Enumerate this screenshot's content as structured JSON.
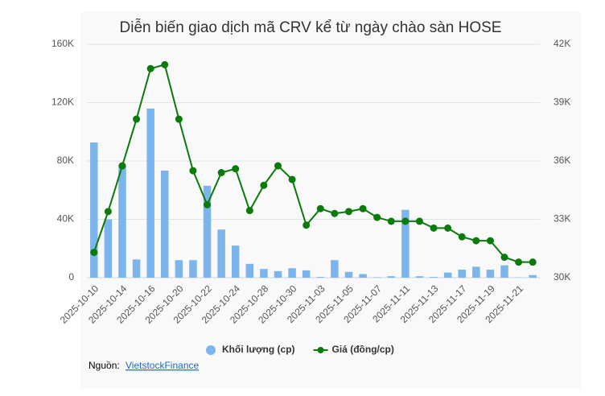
{
  "chart_data": {
    "type": "bar-line",
    "title": "Diễn biến giao dịch mã CRV kể từ ngày chào sàn HOSE",
    "categories": [
      "2025-10-10",
      null,
      "2025-10-14",
      null,
      "2025-10-16",
      null,
      "2025-10-20",
      null,
      "2025-10-22",
      null,
      "2025-10-24",
      null,
      "2025-10-28",
      null,
      "2025-10-30",
      null,
      "2025-11-03",
      null,
      "2025-11-05",
      null,
      "2025-11-07",
      null,
      "2025-11-11",
      null,
      "2025-11-13",
      null,
      "2025-11-17",
      null,
      "2025-11-19",
      null,
      "2025-11-21",
      null
    ],
    "series": [
      {
        "name": "Khối lượng (cp)",
        "color": "#7cb5ec",
        "type": "bar",
        "axis": "y",
        "values": [
          92700,
          40000,
          77000,
          12500,
          115900,
          73400,
          12000,
          12000,
          63000,
          33000,
          22000,
          9500,
          6000,
          4500,
          6500,
          5000,
          500,
          12000,
          4000,
          2500,
          300,
          1000,
          46500,
          1000,
          500,
          3500,
          5500,
          7500,
          5500,
          8500,
          200,
          1800
        ]
      },
      {
        "name": "Giá (đồng/cp)",
        "color": "#0a7a0a",
        "type": "line",
        "axis": "y2",
        "values": [
          31300,
          33400,
          35750,
          38150,
          40750,
          40950,
          38150,
          35500,
          33750,
          35400,
          35600,
          33450,
          34750,
          35750,
          35050,
          32700,
          33550,
          33300,
          33400,
          33550,
          33100,
          32900,
          32900,
          32900,
          32550,
          32550,
          32100,
          31900,
          31900,
          31050,
          30800,
          30800
        ]
      }
    ],
    "ylim": [
      0,
      160000
    ],
    "yticks": [
      0,
      {
        "value": 40000,
        "label": "40K"
      },
      {
        "value": 80000,
        "label": "80K"
      },
      {
        "value": 120000,
        "label": "120K"
      },
      {
        "value": 160000,
        "label": "160K"
      }
    ],
    "y2lim": [
      30000,
      42000
    ],
    "y2ticks": [
      {
        "value": 30000,
        "label": "30K"
      },
      {
        "value": 33000,
        "label": "33K"
      },
      {
        "value": 36000,
        "label": "36K"
      },
      {
        "value": 39000,
        "label": "39K"
      },
      {
        "value": 42000,
        "label": "42K"
      }
    ],
    "grid": true,
    "legend": "bottom",
    "source_label": "Nguồn:",
    "source_link": "VietstockFinance"
  }
}
